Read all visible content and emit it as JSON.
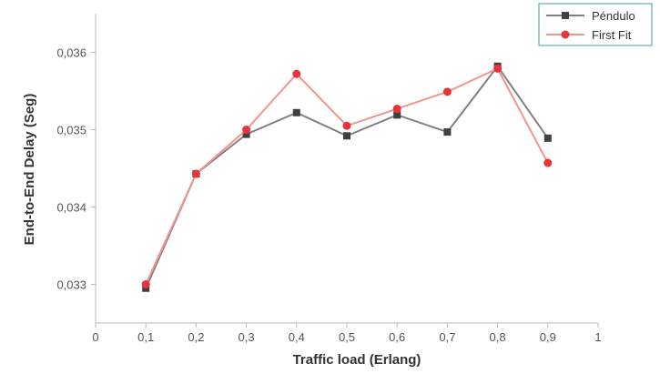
{
  "chart_data": {
    "type": "line",
    "xlabel": "Traffic load (Erlang)",
    "ylabel": "End-to-End Delay (Seg)",
    "xlim": [
      0,
      1
    ],
    "ylim": [
      0.0325,
      0.0365
    ],
    "x_ticks": [
      "0",
      "0,1",
      "0,2",
      "0,3",
      "0,4",
      "0,5",
      "0,6",
      "0,7",
      "0,8",
      "0,9",
      "1"
    ],
    "x_tick_values": [
      0,
      0.1,
      0.2,
      0.3,
      0.4,
      0.5,
      0.6,
      0.7,
      0.8,
      0.9,
      1
    ],
    "y_ticks": [
      "0,033",
      "0,034",
      "0,035",
      "0,036"
    ],
    "y_tick_values": [
      0.033,
      0.034,
      0.035,
      0.036
    ],
    "grid": false,
    "legend_position": "top-right",
    "x": [
      0.1,
      0.2,
      0.3,
      0.4,
      0.5,
      0.6,
      0.7,
      0.8,
      0.9
    ],
    "series": [
      {
        "name": "Péndulo",
        "marker": "square",
        "color": "#808080",
        "marker_color": "#404040",
        "values": [
          0.03295,
          0.03443,
          0.03494,
          0.03522,
          0.03492,
          0.03519,
          0.03497,
          0.03582,
          0.03489
        ]
      },
      {
        "name": "First Fit",
        "marker": "circle",
        "color": "#f4948e",
        "marker_color": "#e8333a",
        "values": [
          0.033,
          0.03443,
          0.035,
          0.03572,
          0.03505,
          0.03527,
          0.03549,
          0.03579,
          0.03457
        ]
      }
    ]
  }
}
